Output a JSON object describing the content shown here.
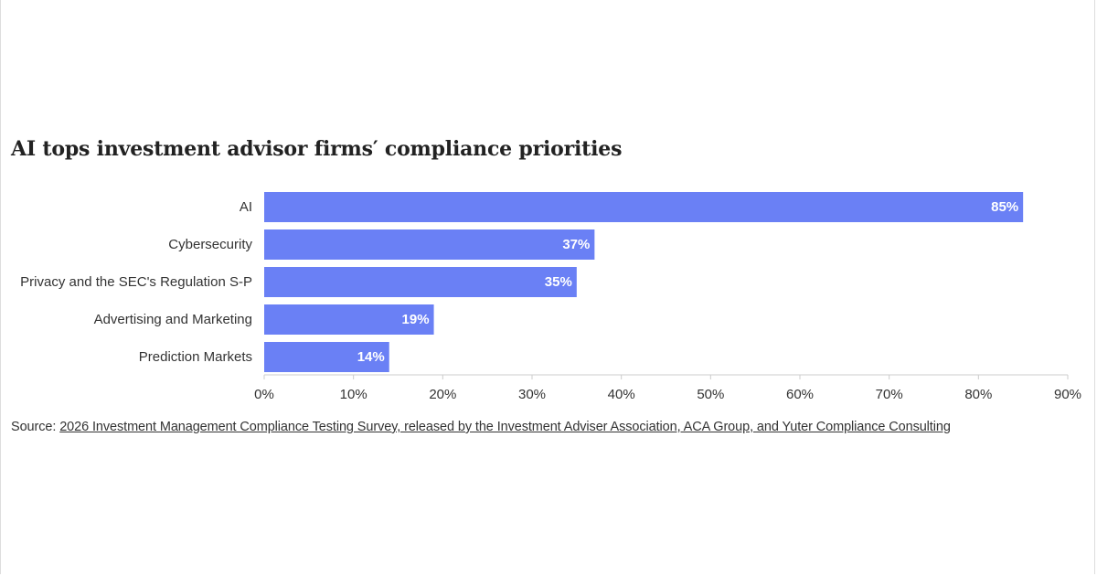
{
  "title": "AI tops investment advisor firms′ compliance priorities",
  "source": {
    "prefix": "Source: ",
    "link_text": "2026 Investment Management Compliance Testing Survey, released by the Investment Adviser Association, ACA Group, and Yuter Compliance Consulting"
  },
  "colors": {
    "bar": "#6a80f5",
    "axis": "#cccccc"
  },
  "chart_data": {
    "type": "bar",
    "orientation": "horizontal",
    "title": "AI tops investment advisor firms′ compliance priorities",
    "categories": [
      "AI",
      "Cybersecurity",
      "Privacy and the SEC's Regulation S-P",
      "Advertising and Marketing",
      "Prediction Markets"
    ],
    "values": [
      85,
      37,
      35,
      19,
      14
    ],
    "data_labels": [
      "85%",
      "37%",
      "35%",
      "19%",
      "14%"
    ],
    "xlim": [
      0,
      90
    ],
    "x_ticks": [
      0,
      10,
      20,
      30,
      40,
      50,
      60,
      70,
      80,
      90
    ],
    "x_tick_labels": [
      "0%",
      "10%",
      "20%",
      "30%",
      "40%",
      "50%",
      "60%",
      "70%",
      "80%",
      "90%"
    ],
    "xlabel": "",
    "ylabel": "",
    "grid": false,
    "legend": "none"
  }
}
